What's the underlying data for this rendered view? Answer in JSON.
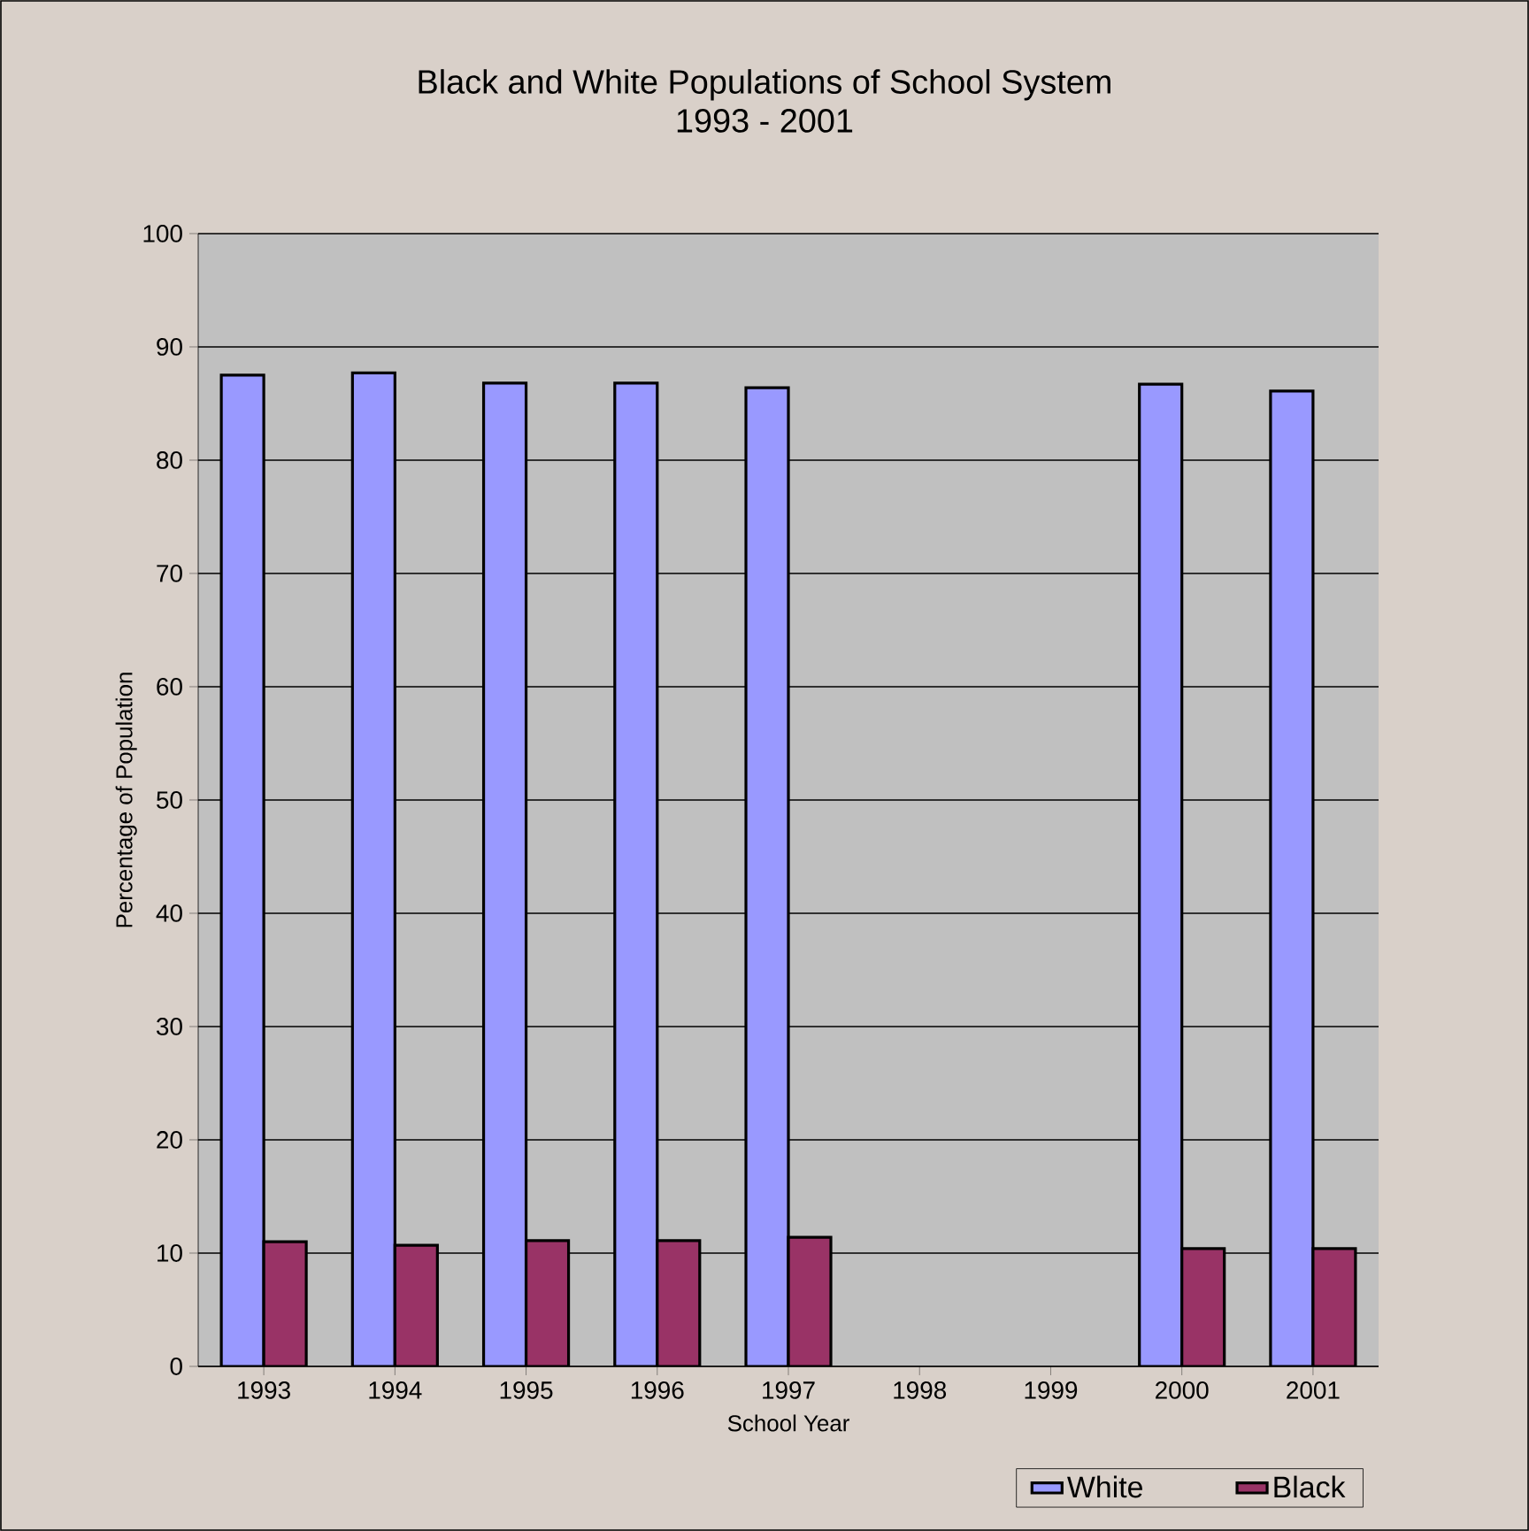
{
  "chart_data": {
    "type": "bar",
    "title": "Black and White Populations of School System",
    "subtitle": "1993 - 2001",
    "xlabel": "School Year",
    "ylabel": "Percentage of Population",
    "categories": [
      "1993",
      "1994",
      "1995",
      "1996",
      "1997",
      "1998",
      "1999",
      "2000",
      "2001"
    ],
    "series": [
      {
        "name": "White",
        "color": "#9999ff",
        "values": [
          87.5,
          87.7,
          86.8,
          86.8,
          86.4,
          null,
          null,
          86.7,
          86.1
        ]
      },
      {
        "name": "Black",
        "color": "#993366",
        "values": [
          11.0,
          10.7,
          11.1,
          11.1,
          11.4,
          null,
          null,
          10.4,
          10.4
        ]
      }
    ],
    "ylim": [
      0,
      100
    ],
    "yticks": [
      0,
      10,
      20,
      30,
      40,
      50,
      60,
      70,
      80,
      90,
      100
    ],
    "grid": "y",
    "legend": "bottom right"
  }
}
